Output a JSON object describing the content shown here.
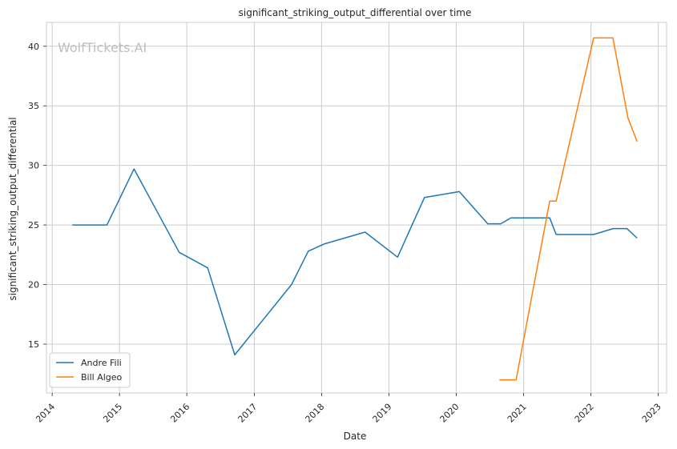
{
  "chart_data": {
    "type": "line",
    "title": "significant_striking_output_differential over time",
    "xlabel": "Date",
    "ylabel": "significant_striking_output_differential",
    "watermark": "WolfTickets.AI",
    "x_ticks": [
      "2014",
      "2015",
      "2016",
      "2017",
      "2018",
      "2019",
      "2020",
      "2021",
      "2022",
      "2023"
    ],
    "y_ticks": [
      15,
      20,
      25,
      30,
      35,
      40
    ],
    "xlim": [
      "2013-12-01",
      "2023-02-15"
    ],
    "ylim": [
      10.9,
      42.0
    ],
    "grid": true,
    "legend_position": "lower-left",
    "series": [
      {
        "name": "Andre Fili",
        "color": "#1f77b4",
        "points": [
          [
            "2014-04-20",
            25.0
          ],
          [
            "2014-10-25",
            25.0
          ],
          [
            "2015-03-21",
            29.7
          ],
          [
            "2015-11-21",
            22.7
          ],
          [
            "2016-04-23",
            21.4
          ],
          [
            "2016-09-17",
            14.1
          ],
          [
            "2017-07-22",
            20.0
          ],
          [
            "2017-10-21",
            22.8
          ],
          [
            "2018-01-14",
            23.4
          ],
          [
            "2018-08-25",
            24.4
          ],
          [
            "2019-02-17",
            22.3
          ],
          [
            "2019-07-13",
            27.3
          ],
          [
            "2020-01-18",
            27.8
          ],
          [
            "2020-06-20",
            25.1
          ],
          [
            "2020-08-29",
            25.1
          ],
          [
            "2020-10-24",
            25.6
          ],
          [
            "2021-05-22",
            25.6
          ],
          [
            "2021-06-26",
            24.2
          ],
          [
            "2022-01-15",
            24.2
          ],
          [
            "2022-05-01",
            24.7
          ],
          [
            "2022-07-15",
            24.7
          ],
          [
            "2022-09-08",
            23.9
          ]
        ]
      },
      {
        "name": "Bill Algeo",
        "color": "#ff7f0e",
        "points": [
          [
            "2020-08-22",
            12.0
          ],
          [
            "2020-11-21",
            12.0
          ],
          [
            "2021-05-22",
            27.0
          ],
          [
            "2021-06-26",
            27.0
          ],
          [
            "2022-01-15",
            40.7
          ],
          [
            "2022-04-30",
            40.7
          ],
          [
            "2022-07-20",
            34.0
          ],
          [
            "2022-09-08",
            32.0
          ]
        ]
      }
    ]
  }
}
